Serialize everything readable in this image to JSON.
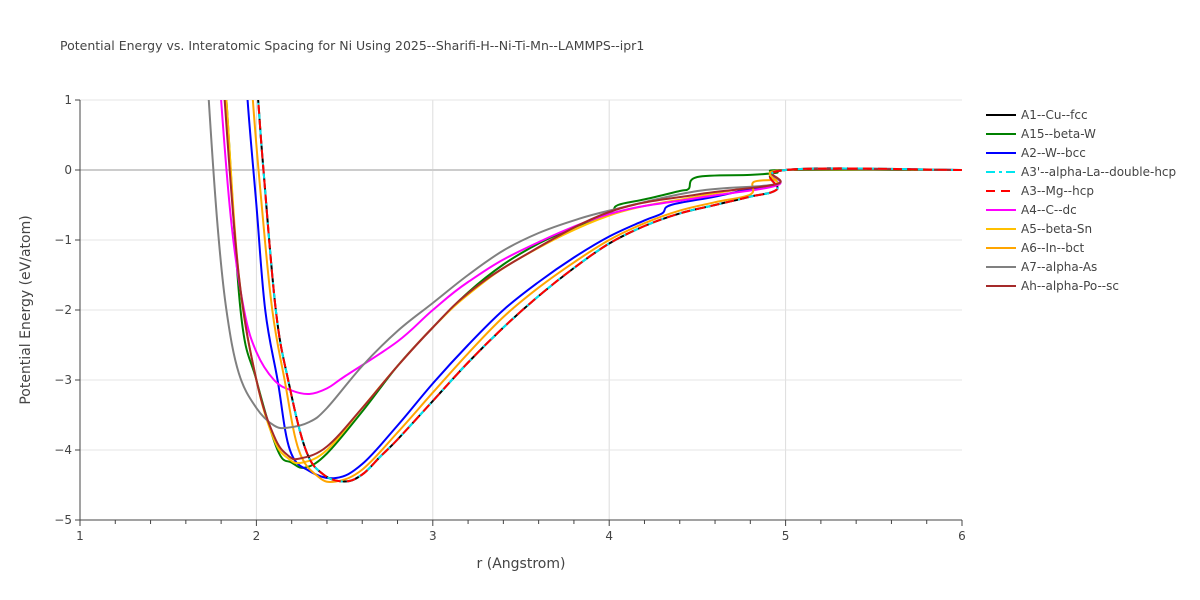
{
  "chart_data": {
    "type": "line",
    "title": "Potential Energy vs. Interatomic Spacing for Ni Using 2025--Sharifi-H--Ni-Ti-Mn--LAMMPS--ipr1",
    "xlabel": "r (Angstrom)",
    "ylabel": "Potential Energy (eV/atom)",
    "xlim": [
      1,
      6
    ],
    "ylim": [
      -5,
      1
    ],
    "xticks": [
      "1",
      "2",
      "3",
      "4",
      "5",
      "6"
    ],
    "yticks": [
      "1",
      "0",
      "−1",
      "−2",
      "−3",
      "−4",
      "−5"
    ],
    "grid": true,
    "legend": "right",
    "series": [
      {
        "name": "A1--Cu--fcc",
        "color": "#000000",
        "dash": "solid",
        "x": [
          1.98,
          2.01,
          2.04,
          2.11,
          2.18,
          2.28,
          2.38,
          2.5,
          2.6,
          2.7,
          2.8,
          3.0,
          3.2,
          3.4,
          3.6,
          3.8,
          4.0,
          4.2,
          4.4,
          4.6,
          4.8,
          4.95,
          5.0,
          6.0
        ],
        "y": [
          2,
          1,
          0,
          -2,
          -3,
          -4,
          -4.35,
          -4.45,
          -4.35,
          -4.1,
          -3.85,
          -3.3,
          -2.75,
          -2.25,
          -1.8,
          -1.4,
          -1.05,
          -0.8,
          -0.62,
          -0.5,
          -0.38,
          -0.28,
          0,
          0
        ]
      },
      {
        "name": "A15--beta-W",
        "color": "#008000",
        "dash": "solid",
        "x": [
          1.8,
          1.83,
          1.91,
          2.0,
          2.12,
          2.2,
          2.28,
          2.4,
          2.6,
          2.8,
          3.0,
          3.2,
          3.4,
          3.6,
          3.8,
          4.0,
          4.05,
          4.2,
          4.4,
          4.45,
          4.5,
          4.8,
          4.95,
          5.0,
          6.0
        ],
        "y": [
          2,
          1,
          -2,
          -3,
          -4,
          -4.18,
          -4.25,
          -4.05,
          -3.45,
          -2.8,
          -2.25,
          -1.75,
          -1.35,
          -1.05,
          -0.82,
          -0.62,
          -0.5,
          -0.42,
          -0.3,
          -0.27,
          -0.1,
          -0.07,
          -0.04,
          0,
          0
        ]
      },
      {
        "name": "A2--W--bcc",
        "color": "#0000ff",
        "dash": "solid",
        "x": [
          1.93,
          1.95,
          2.0,
          2.05,
          2.12,
          2.19,
          2.3,
          2.45,
          2.6,
          2.8,
          3.0,
          3.2,
          3.4,
          3.6,
          3.8,
          4.0,
          4.2,
          4.3,
          4.35,
          4.6,
          4.8,
          4.95,
          5.0,
          6.0
        ],
        "y": [
          2,
          1,
          -0.5,
          -2,
          -3,
          -4,
          -4.3,
          -4.4,
          -4.2,
          -3.65,
          -3.05,
          -2.5,
          -2.0,
          -1.6,
          -1.25,
          -0.95,
          -0.72,
          -0.62,
          -0.5,
          -0.38,
          -0.27,
          -0.2,
          0,
          0
        ]
      },
      {
        "name": "A3'--alpha-La--double-hcp",
        "color": "#00e5ee",
        "dash": "dashdot",
        "x": [
          1.98,
          2.01,
          2.04,
          2.11,
          2.18,
          2.28,
          2.38,
          2.5,
          2.6,
          2.7,
          2.8,
          3.0,
          3.2,
          3.4,
          3.6,
          3.8,
          4.0,
          4.2,
          4.4,
          4.6,
          4.8,
          4.95,
          5.0,
          6.0
        ],
        "y": [
          2,
          1,
          0,
          -2,
          -3,
          -4,
          -4.35,
          -4.45,
          -4.35,
          -4.1,
          -3.85,
          -3.3,
          -2.75,
          -2.25,
          -1.8,
          -1.4,
          -1.05,
          -0.8,
          -0.62,
          -0.5,
          -0.38,
          -0.28,
          0,
          0
        ]
      },
      {
        "name": "A3--Mg--hcp",
        "color": "#ff0000",
        "dash": "dash",
        "x": [
          1.98,
          2.01,
          2.04,
          2.11,
          2.18,
          2.28,
          2.38,
          2.5,
          2.6,
          2.7,
          2.8,
          3.0,
          3.2,
          3.4,
          3.6,
          3.8,
          4.0,
          4.2,
          4.4,
          4.6,
          4.8,
          4.95,
          5.0,
          6.0
        ],
        "y": [
          2,
          1,
          0,
          -2,
          -3,
          -4,
          -4.35,
          -4.45,
          -4.35,
          -4.1,
          -3.85,
          -3.3,
          -2.75,
          -2.25,
          -1.8,
          -1.4,
          -1.05,
          -0.8,
          -0.62,
          -0.5,
          -0.38,
          -0.28,
          0,
          0
        ]
      },
      {
        "name": "A4--C--dc",
        "color": "#ff00ff",
        "dash": "solid",
        "x": [
          1.78,
          1.8,
          1.86,
          1.93,
          2.0,
          2.1,
          2.2,
          2.3,
          2.4,
          2.5,
          2.8,
          3.0,
          3.2,
          3.5,
          4.0,
          4.5,
          4.95,
          5.0,
          6.0
        ],
        "y": [
          2,
          1,
          -0.8,
          -2,
          -2.6,
          -3.0,
          -3.15,
          -3.2,
          -3.12,
          -2.95,
          -2.45,
          -2.0,
          -1.6,
          -1.15,
          -0.63,
          -0.4,
          -0.22,
          0,
          0
        ]
      },
      {
        "name": "A5--beta-Sn",
        "color": "#ffc000",
        "dash": "solid",
        "x": [
          1.8,
          1.83,
          1.9,
          2.0,
          2.1,
          2.18,
          2.26,
          2.4,
          2.6,
          2.8,
          3.0,
          3.2,
          3.5,
          4.0,
          4.5,
          4.8,
          4.95,
          5.0,
          6.0
        ],
        "y": [
          2,
          1,
          -1.5,
          -3,
          -3.85,
          -4.12,
          -4.18,
          -4.0,
          -3.4,
          -2.8,
          -2.25,
          -1.78,
          -1.25,
          -0.65,
          -0.38,
          -0.25,
          -0.2,
          0,
          0
        ]
      },
      {
        "name": "A6--In--bct",
        "color": "#ffa500",
        "dash": "solid",
        "x": [
          1.96,
          1.98,
          2.03,
          2.09,
          2.16,
          2.24,
          2.35,
          2.45,
          2.6,
          2.8,
          3.0,
          3.2,
          3.4,
          3.6,
          3.8,
          4.0,
          4.2,
          4.4,
          4.6,
          4.8,
          4.82,
          4.95,
          5.0,
          6.0
        ],
        "y": [
          2,
          1,
          -0.5,
          -2,
          -3,
          -4,
          -4.38,
          -4.45,
          -4.28,
          -3.75,
          -3.18,
          -2.62,
          -2.1,
          -1.68,
          -1.32,
          -1.0,
          -0.76,
          -0.58,
          -0.46,
          -0.35,
          -0.17,
          -0.13,
          0,
          0
        ]
      },
      {
        "name": "A7--alpha-As",
        "color": "#808080",
        "dash": "solid",
        "x": [
          1.71,
          1.73,
          1.78,
          1.83,
          1.9,
          2.0,
          2.1,
          2.18,
          2.3,
          2.4,
          2.6,
          2.8,
          3.0,
          3.2,
          3.4,
          3.6,
          3.8,
          4.0,
          4.5,
          4.95,
          5.0,
          6.0
        ],
        "y": [
          2,
          1,
          -0.8,
          -2,
          -2.9,
          -3.4,
          -3.65,
          -3.68,
          -3.6,
          -3.4,
          -2.8,
          -2.3,
          -1.9,
          -1.5,
          -1.15,
          -0.9,
          -0.72,
          -0.58,
          -0.3,
          -0.2,
          0,
          0
        ]
      },
      {
        "name": "Ah--alpha-Po--sc",
        "color": "#a52a2a",
        "dash": "solid",
        "x": [
          1.8,
          1.82,
          1.9,
          2.0,
          2.1,
          2.18,
          2.25,
          2.4,
          2.6,
          2.8,
          3.0,
          3.2,
          3.5,
          4.0,
          4.5,
          4.95,
          5.0,
          6.0
        ],
        "y": [
          2,
          1,
          -1.5,
          -3,
          -3.8,
          -4.08,
          -4.12,
          -3.95,
          -3.4,
          -2.8,
          -2.25,
          -1.76,
          -1.25,
          -0.6,
          -0.35,
          -0.2,
          0,
          0
        ]
      }
    ]
  }
}
